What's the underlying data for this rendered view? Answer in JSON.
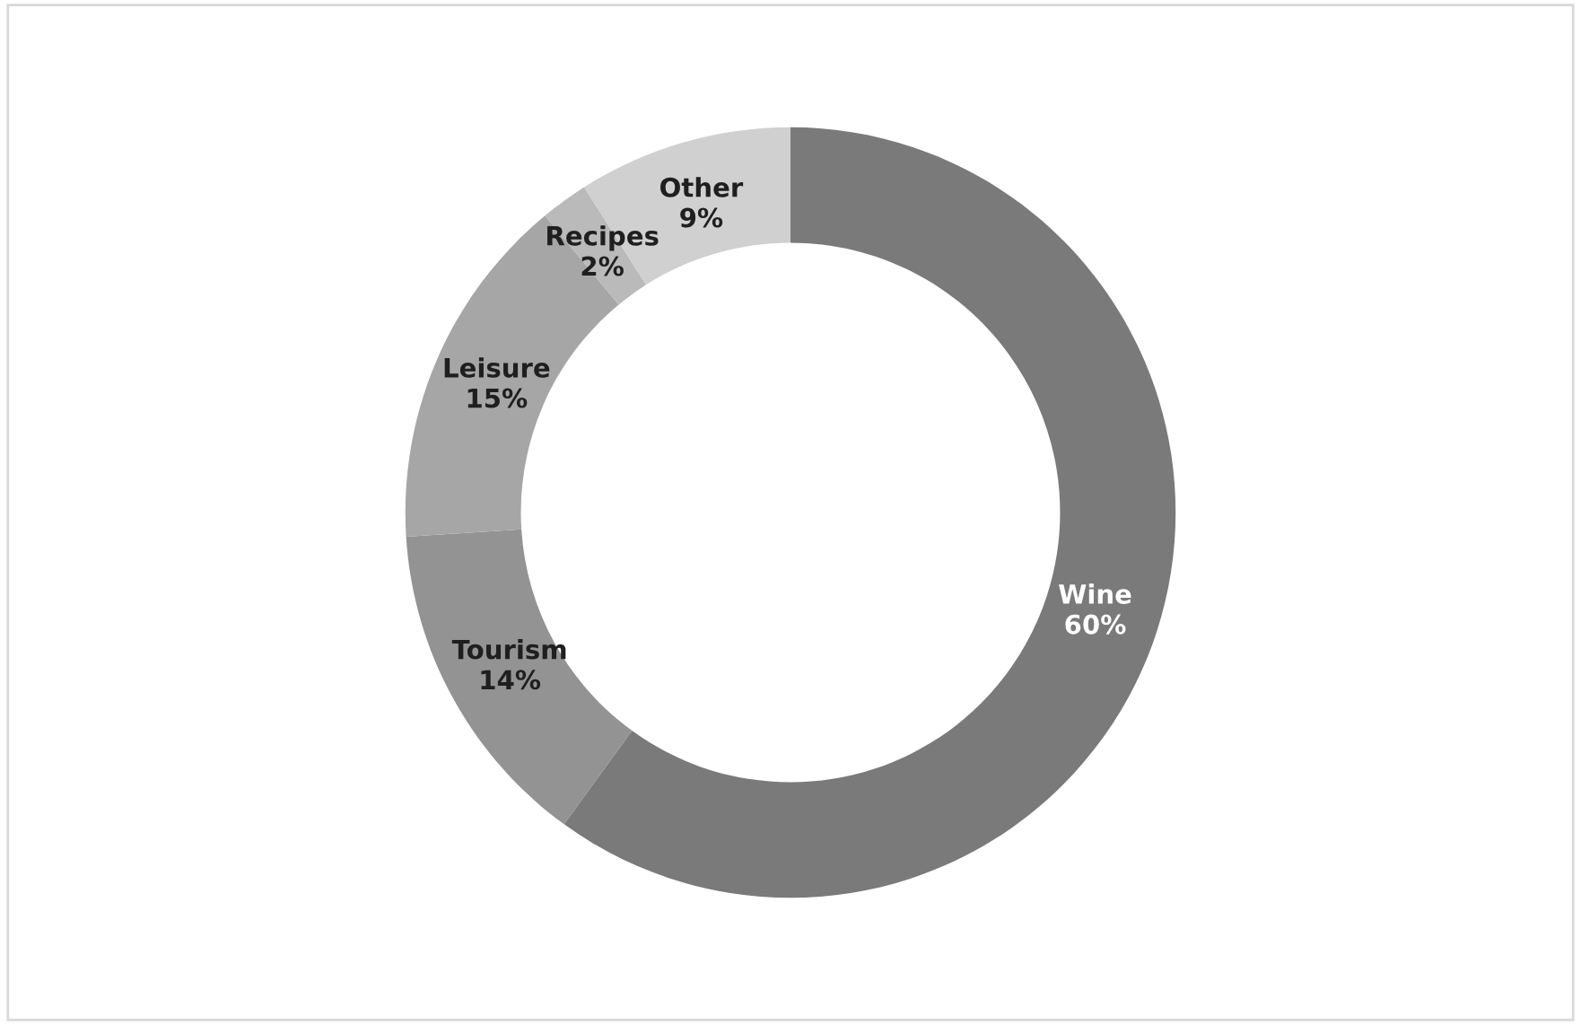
{
  "chart_data": {
    "type": "donut",
    "categories": [
      "Wine",
      "Tourism",
      "Leisure",
      "Recipes",
      "Other"
    ],
    "values": [
      60,
      14,
      15,
      2,
      9
    ],
    "value_labels": [
      "60%",
      "14%",
      "15%",
      "2%",
      "9%"
    ],
    "colors": [
      "#7a7a7a",
      "#939393",
      "#a6a6a6",
      "#bababa",
      "#d0d0d0"
    ],
    "legend": false
  }
}
